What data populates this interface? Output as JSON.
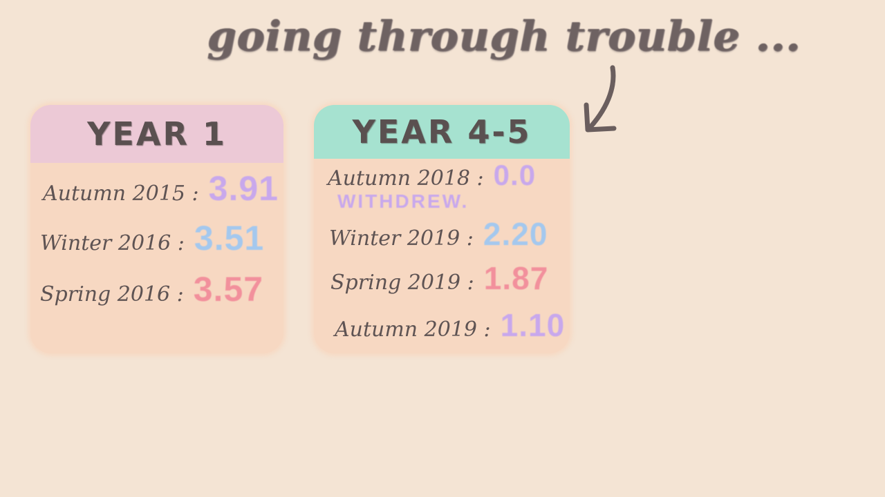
{
  "headline": "going through trouble ...",
  "year1": {
    "title": "YEAR 1",
    "terms": [
      {
        "label": "Autumn 2015 :",
        "value": "3.91",
        "color": "#c8a8ec"
      },
      {
        "label": "Winter 2016 :",
        "value": "3.51",
        "color": "#a4c8ee"
      },
      {
        "label": "Spring 2016 :",
        "value": "3.57",
        "color": "#f2909c"
      }
    ]
  },
  "year45": {
    "title": "YEAR 4-5",
    "terms": [
      {
        "label": "Autumn 2018 :",
        "value": "0.0",
        "color": "#c8a8ec"
      },
      {
        "label": "Winter 2019 :",
        "value": "2.20",
        "color": "#a4c8ee"
      },
      {
        "label": "Spring 2019 :",
        "value": "1.87",
        "color": "#f2909c"
      },
      {
        "label": "Autumn 2019 :",
        "value": "1.10",
        "color": "#c8a8ec"
      }
    ],
    "note": "WITHDREW.",
    "note_color": "#c8a8ec"
  },
  "colors": {
    "background": "#f4e4d4",
    "card": "#f7d8c2",
    "year1_header": "#ecc9d6",
    "year45_header": "#a6e2d0",
    "ink": "#5e5353"
  },
  "icons": {
    "arrow": "curved-arrow-down-left-icon"
  }
}
